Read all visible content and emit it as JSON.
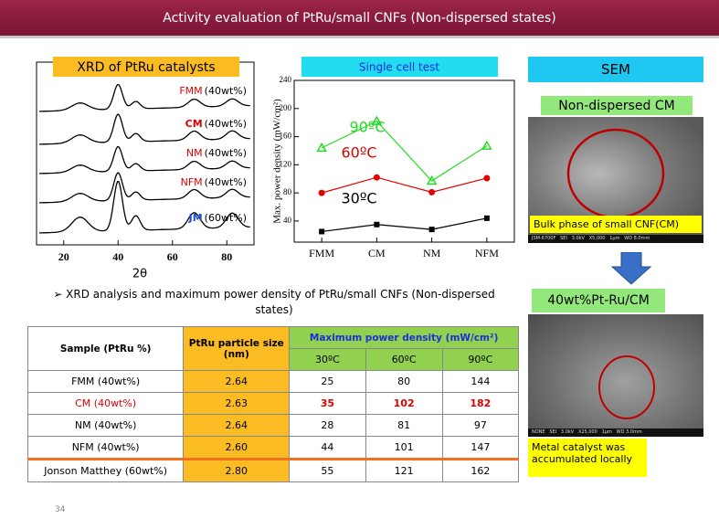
{
  "header": {
    "title": "Activity evaluation of PtRu/small CNFs (Non-dispersed states)"
  },
  "chart_data": [
    {
      "type": "xrd",
      "title": "XRD of PtRu catalysts",
      "x_label": "2θ",
      "xlim": [
        10,
        90
      ],
      "xticks": [
        20,
        40,
        60,
        80
      ],
      "series": [
        {
          "name": "FMM",
          "loading": "(40wt%)",
          "color": "#e00000"
        },
        {
          "name": "CM",
          "loading": "(40wt%)",
          "color": "#e00000"
        },
        {
          "name": "NM",
          "loading": "(40wt%)",
          "color": "#e00000"
        },
        {
          "name": "NFM",
          "loading": "(40wt%)",
          "color": "#e00000"
        },
        {
          "name": "JM",
          "loading": "(60wt%)",
          "color": "#1f4fd0"
        }
      ]
    },
    {
      "type": "line",
      "title": "Single cell test",
      "y_label": "Max. power density (mW/cm²)",
      "categories": [
        "FMM",
        "CM",
        "NM",
        "NFM"
      ],
      "ylim": [
        10,
        240
      ],
      "yticks": [
        40,
        80,
        120,
        160,
        200,
        240
      ],
      "series": [
        {
          "name": "30ºC",
          "color": "#000000",
          "marker": "square",
          "values": [
            25,
            35,
            28,
            44
          ]
        },
        {
          "name": "60ºC",
          "color": "#e00000",
          "marker": "circle",
          "values": [
            80,
            102,
            81,
            101
          ]
        },
        {
          "name": "90ºC",
          "color": "#22dd22",
          "marker": "triangle",
          "values": [
            144,
            182,
            97,
            147
          ]
        }
      ]
    }
  ],
  "caption": "➢ XRD analysis and maximum power density of PtRu/small CNFs (Non-dispersed states)",
  "table": {
    "header": [
      "Sample (PtRu %)",
      "PtRu particle size (nm)",
      "Maximum power density (mW/cm²)"
    ],
    "subheader": [
      "30ºC",
      "60ºC",
      "90ºC"
    ],
    "rows": [
      [
        "FMM (40wt%)",
        "2.64",
        "25",
        "80",
        "144"
      ],
      [
        "CM (40wt%)",
        "2.63",
        "35",
        "102",
        "182"
      ],
      [
        "NM (40wt%)",
        "2.64",
        "28",
        "81",
        "97"
      ],
      [
        "NFM (40wt%)",
        "2.60",
        "44",
        "101",
        "147"
      ],
      [
        "Jonson Matthey (60wt%)",
        "2.80",
        "55",
        "121",
        "162"
      ]
    ]
  },
  "sem": {
    "title": "SEM",
    "panels": [
      {
        "label": "Non-dispersed CM",
        "note": "Bulk phase of small CNF(CM)",
        "footer": "JSM-6700F   SEI   3.0kV   X5,000   1μm   WD 8.0mm"
      },
      {
        "label": "40wt%Pt-Ru/CM",
        "note": "Metal catalyst was accumulated locally",
        "footer": "NONE   SEI   3.0kV   X25,000   1μm   WD 3.0mm"
      }
    ]
  },
  "page_number": "34"
}
